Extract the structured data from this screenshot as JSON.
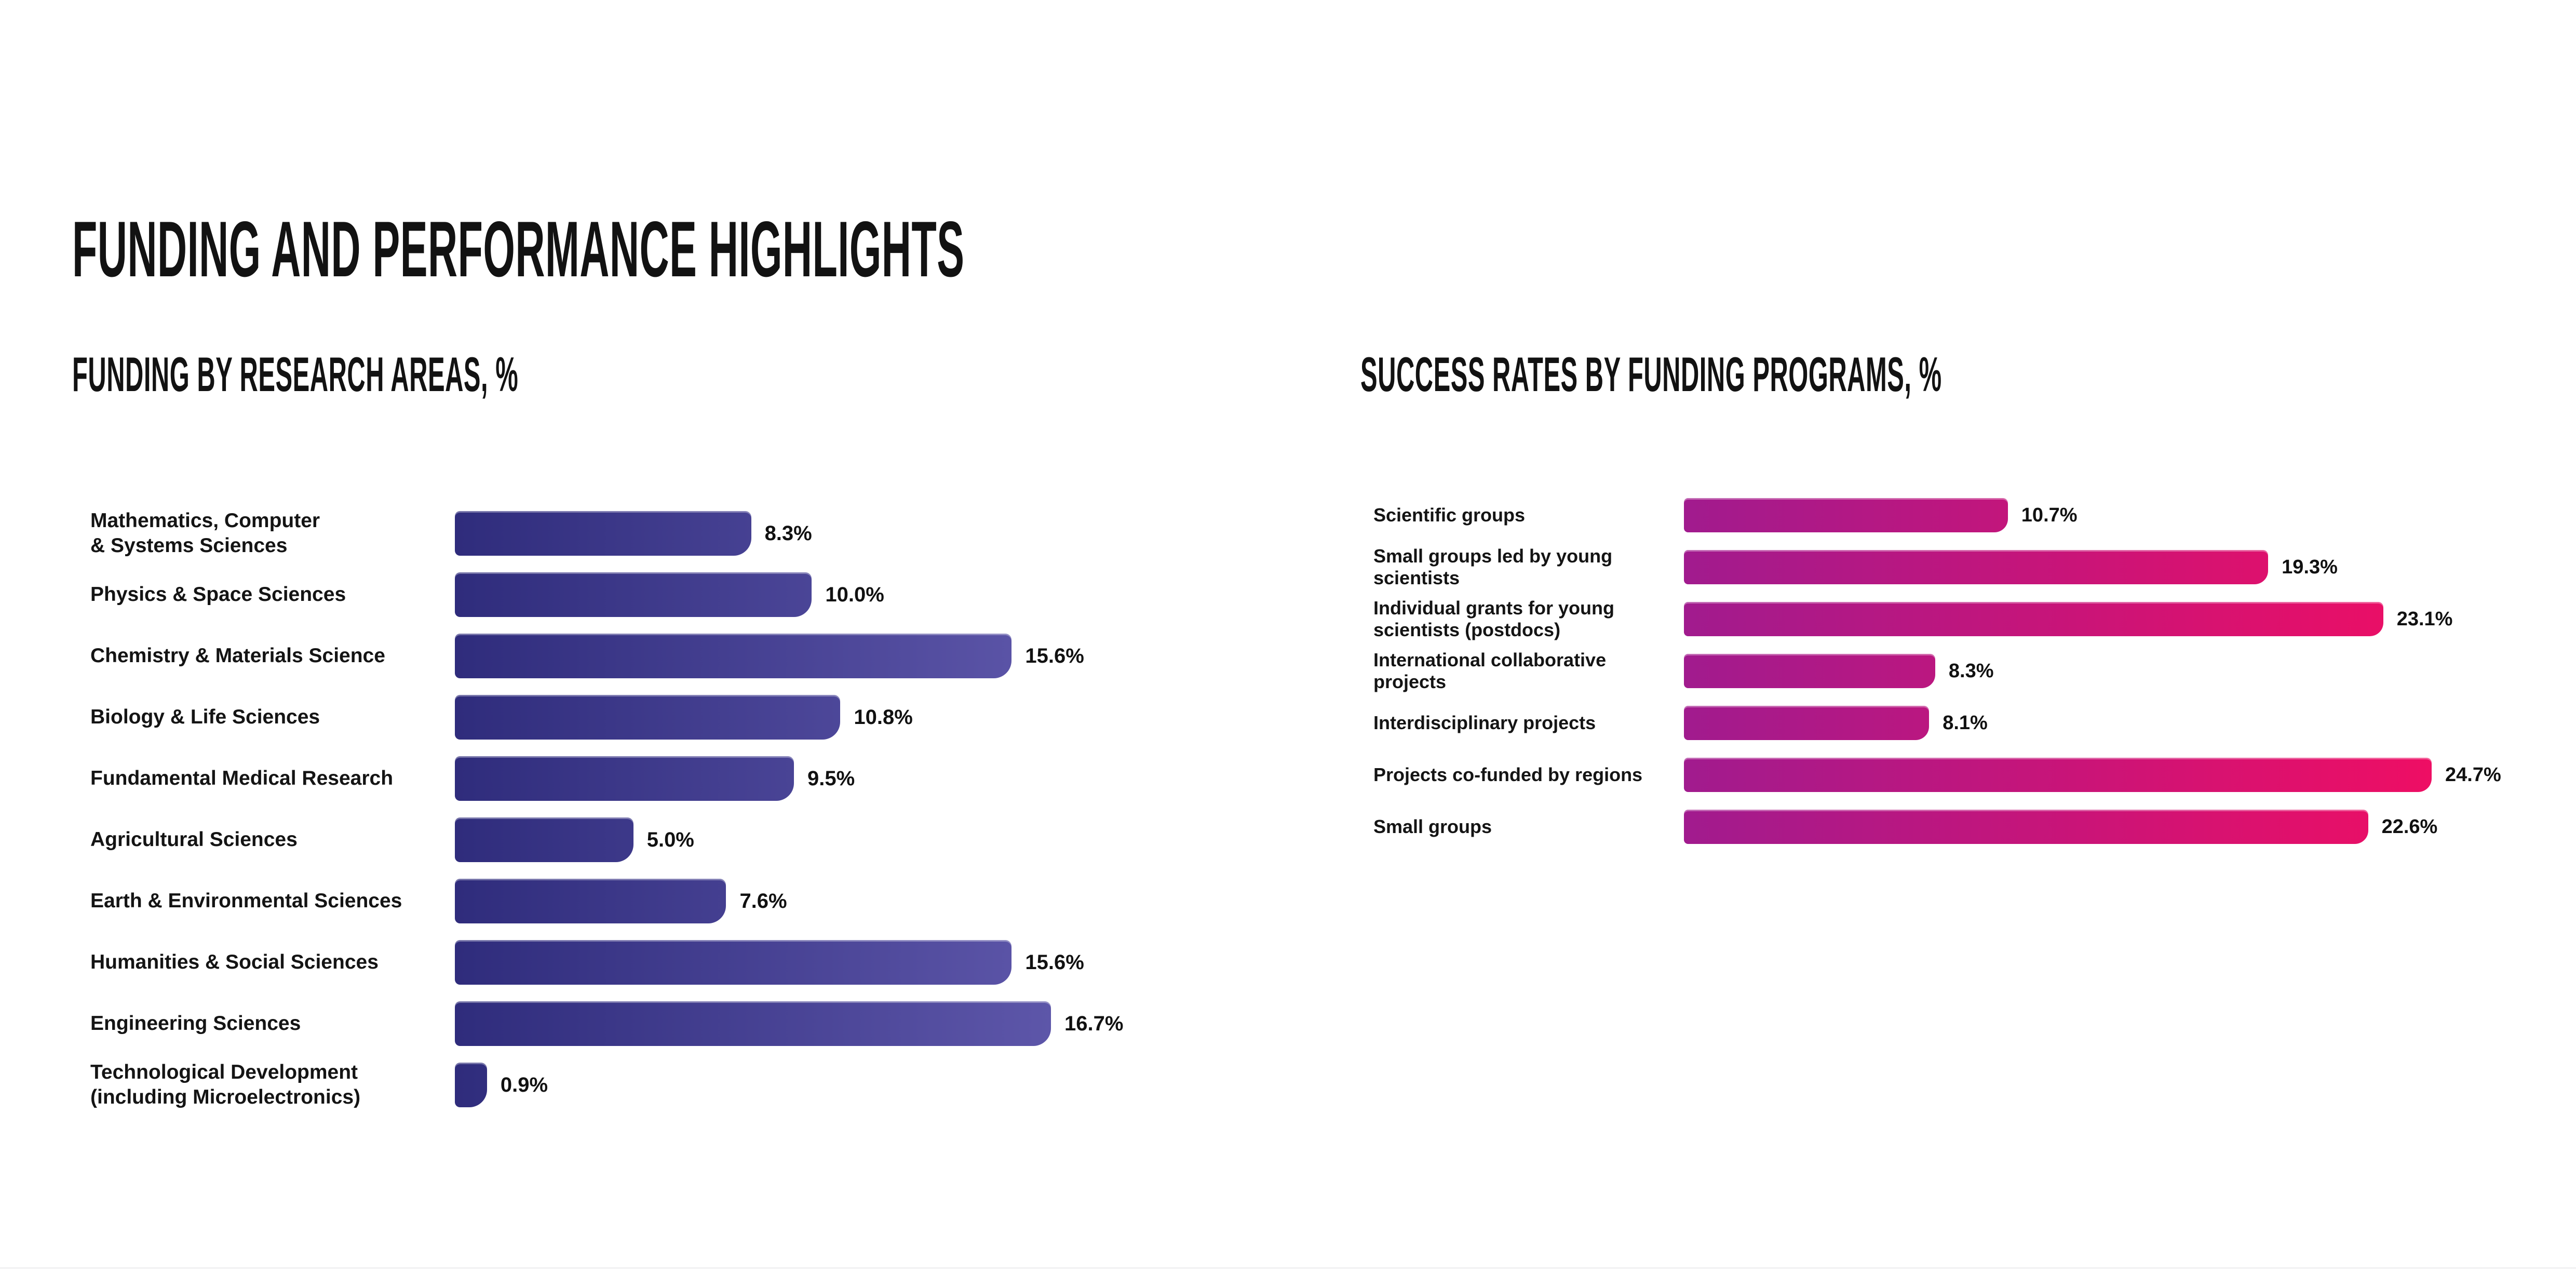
{
  "page": {
    "title": "FUNDING AND PERFORMANCE HIGHLIGHTS",
    "background_color": "#ffffff",
    "text_color": "#121212"
  },
  "chart_data": [
    {
      "type": "bar",
      "orientation": "horizontal",
      "title": "FUNDING BY RESEARCH AREAS, %",
      "unit": "%",
      "grid": false,
      "legend": false,
      "axis_max_pct": 16.7,
      "bar_gradient": [
        "#2f2c7c",
        "#5d56a9"
      ],
      "categories": [
        "Mathematics, Computer\n& Systems Sciences",
        "Physics & Space Sciences",
        "Chemistry & Materials Science",
        "Biology & Life Sciences",
        "Fundamental Medical Research",
        "Agricultural Sciences",
        "Earth & Environmental Sciences",
        "Humanities & Social Sciences",
        "Engineering Sciences",
        "Technological Development\n(including Microelectronics)"
      ],
      "values": [
        8.3,
        10.0,
        15.6,
        10.8,
        9.5,
        5.0,
        7.6,
        15.6,
        16.7,
        0.9
      ],
      "value_labels": [
        "8.3%",
        "10.0%",
        "15.6%",
        "10.8%",
        "9.5%",
        "5.0%",
        "7.6%",
        "15.6%",
        "16.7%",
        "0.9%"
      ]
    },
    {
      "type": "bar",
      "orientation": "horizontal",
      "title": "SUCCESS RATES BY FUNDING PROGRAMS, %",
      "unit": "%",
      "grid": false,
      "legend": false,
      "axis_max_pct": 24.7,
      "bar_gradient": [
        "#a11b8e",
        "#ee0e64"
      ],
      "categories": [
        "Scientific groups",
        "Small groups led by young\nscientists",
        "Individual grants for young\nscientists (postdocs)",
        "International collaborative\nprojects",
        "Interdisciplinary projects",
        "Projects co-funded by regions",
        "Small groups"
      ],
      "values": [
        10.7,
        19.3,
        23.1,
        8.3,
        8.1,
        24.7,
        22.6
      ],
      "value_labels": [
        "10.7%",
        "19.3%",
        "23.1%",
        "8.3%",
        "8.1%",
        "24.7%",
        "22.6%"
      ]
    }
  ]
}
